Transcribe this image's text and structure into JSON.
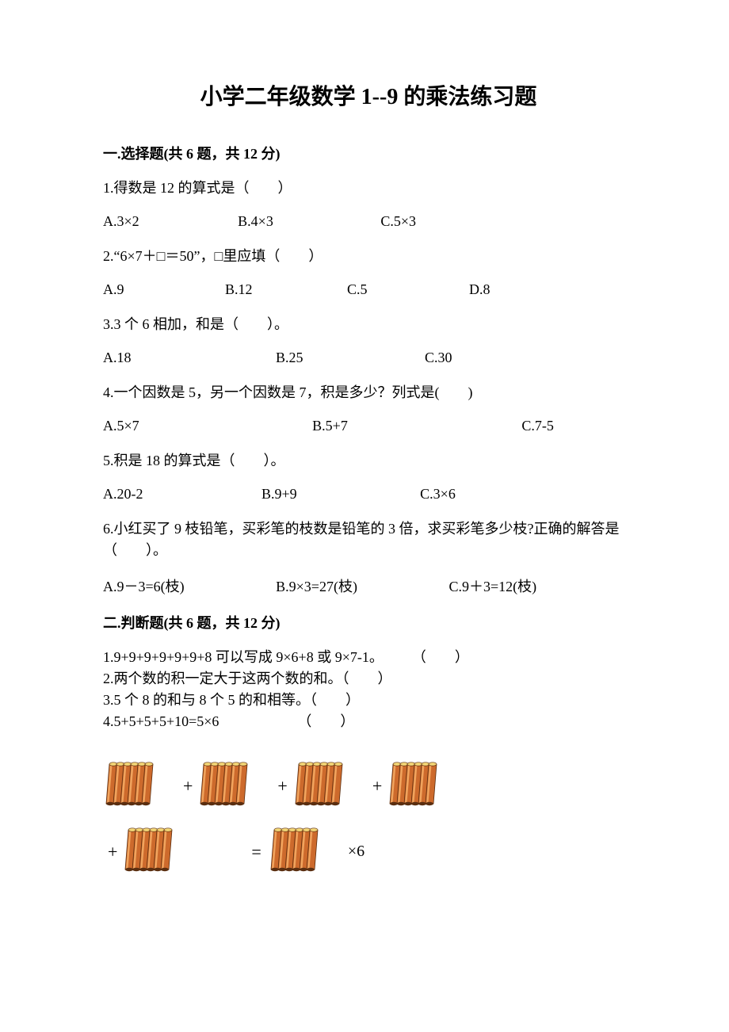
{
  "title": "小学二年级数学 1--9 的乘法练习题",
  "section1": {
    "header": "一.选择题(共 6 题，共 12 分)",
    "q1": {
      "text": "1.得数是 12 的算式是（　　）",
      "opts": {
        "a": "A.3×2",
        "b": "B.4×3",
        "c": "C.5×3"
      },
      "gap_b": 166,
      "gap_c": 176
    },
    "q2": {
      "text": "2.“6×7＋□＝50”，□里应填（　　）",
      "opts": {
        "a": "A.9",
        "b": "B.12",
        "c": "C.5",
        "d": "D.8"
      },
      "gap_b": 150,
      "gap_c": 150,
      "gap_d": 150
    },
    "q3": {
      "text": "3.3 个 6 相加，和是（　　）。",
      "opts": {
        "a": "A.18",
        "b": "B.25",
        "c": "C.30"
      },
      "gap_b": 214,
      "gap_c": 184
    },
    "q4": {
      "text": "4.一个因数是 5，另一个因数是 7，积是多少？列式是(　　)",
      "opts": {
        "a": "A.5×7",
        "b": "B.5+7",
        "c": "C.7-5"
      },
      "gap_b": 260,
      "gap_c": 260
    },
    "q5": {
      "text": "5.积是 18 的算式是（　　）。",
      "opts": {
        "a": "A.20-2",
        "b": "B.9+9",
        "c": "C.3×6"
      },
      "gap_b": 196,
      "gap_c": 196
    },
    "q6": {
      "text": "6.小红买了 9 枝铅笔，买彩笔的枝数是铅笔的 3 倍，求买彩笔多少枝?正确的解答是（　　）。",
      "opts": {
        "a": "A.9－3=6(枝)",
        "b": "B.9×3=27(枝)",
        "c": "C.9＋3=12(枝)"
      },
      "gap_b": 214,
      "gap_c": 214
    }
  },
  "section2": {
    "header": "二.判断题(共 6 题，共 12 分)",
    "lines": [
      "1.9+9+9+9+9+9+8 可以写成 9×6+8 或 9×7-1。　　　（　　）",
      "2.两个数的积一定大于这两个数的和。（　　）",
      "3.5 个 8 的和与 8 个 5 的和相等。（　　）",
      "4.5+5+5+5+10=5×6　　　　　　（　　）"
    ]
  },
  "illustration": {
    "stick_main_color": "#cd6a2c",
    "stick_highlight": "#f0a45e",
    "stick_shadow": "#5a2e10",
    "tip_color": "#f5d878",
    "bg": "#ffffff",
    "plus": "+",
    "equals": "=",
    "times_text": "×6",
    "bundle_sticks": 6,
    "row1_bundles": 4,
    "row2_left_bundles": 1,
    "row2_right_bundles": 1
  }
}
